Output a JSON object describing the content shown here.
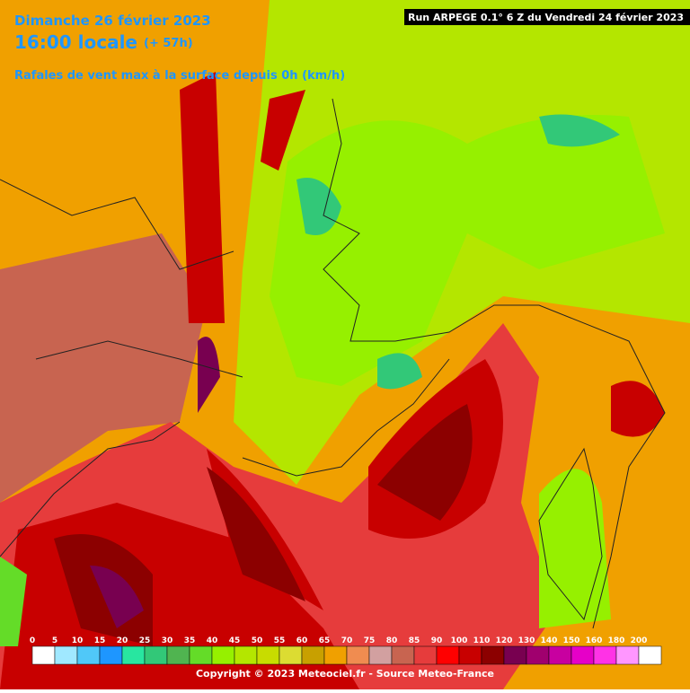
{
  "header": {
    "date": "Dimanche 26 février 2023",
    "time": "16:00 locale",
    "lead": "(+ 57h)",
    "subtitle": "Rafales de vent max à la surface depuis 0h (km/h)",
    "run": "Run ARPEGE 0.1° 6 Z du Vendredi 24 février 2023"
  },
  "legend": {
    "stops": [
      {
        "value": 0,
        "color": "#ffffff"
      },
      {
        "value": 5,
        "color": "#a0e8ff"
      },
      {
        "value": 10,
        "color": "#50c8f8"
      },
      {
        "value": 15,
        "color": "#1e96ff"
      },
      {
        "value": 20,
        "color": "#28e6a0"
      },
      {
        "value": 25,
        "color": "#32c878"
      },
      {
        "value": 30,
        "color": "#50b450"
      },
      {
        "value": 35,
        "color": "#64dc28"
      },
      {
        "value": 40,
        "color": "#96f000"
      },
      {
        "value": 45,
        "color": "#b4e600"
      },
      {
        "value": 50,
        "color": "#c8dc00"
      },
      {
        "value": 55,
        "color": "#dcdc32"
      },
      {
        "value": 60,
        "color": "#c8a000"
      },
      {
        "value": 65,
        "color": "#f0a000"
      },
      {
        "value": 70,
        "color": "#f08c50"
      },
      {
        "value": 75,
        "color": "#d2a0a0"
      },
      {
        "value": 80,
        "color": "#c86450"
      },
      {
        "value": 85,
        "color": "#e63c3c"
      },
      {
        "value": 90,
        "color": "#ff0000"
      },
      {
        "value": 100,
        "color": "#c80000"
      },
      {
        "value": 110,
        "color": "#8c0000"
      },
      {
        "value": 120,
        "color": "#780050"
      },
      {
        "value": 130,
        "color": "#a0006e"
      },
      {
        "value": 140,
        "color": "#c800a0"
      },
      {
        "value": 150,
        "color": "#e600c8"
      },
      {
        "value": 160,
        "color": "#ff32e6"
      },
      {
        "value": 180,
        "color": "#ff96ff"
      },
      {
        "value": 200,
        "color": "#ffffff"
      }
    ]
  },
  "footer": {
    "copyright": "Copyright © 2023 Meteociel.fr - Source Meteo-France"
  }
}
